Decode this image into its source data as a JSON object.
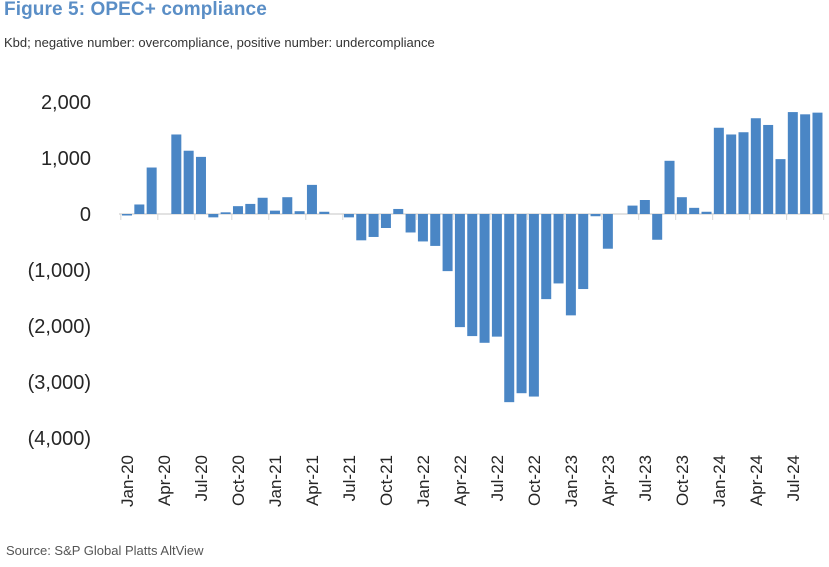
{
  "chart_data": {
    "type": "bar",
    "title": "Figure 5: OPEC+ compliance",
    "subtitle": "Kbd; negative number: overcompliance, positive number: undercompliance",
    "source": "Source: S&P Global Platts AltView",
    "xlabel": "",
    "ylabel": "",
    "ylim": [
      -4000,
      2000
    ],
    "yticks": [
      2000,
      1000,
      0,
      -1000,
      -2000,
      -3000,
      -4000
    ],
    "ytick_labels": [
      "2,000",
      "1,000",
      "0",
      "(1,000)",
      "(2,000)",
      "(3,000)",
      "(4,000)"
    ],
    "xtick_labels": [
      "Jan-20",
      "Apr-20",
      "Jul-20",
      "Oct-20",
      "Jan-21",
      "Apr-21",
      "Jul-21",
      "Oct-21",
      "Jan-22",
      "Apr-22",
      "Jul-22",
      "Oct-22",
      "Jan-23",
      "Apr-23",
      "Jul-23",
      "Oct-23",
      "Jan-24",
      "Apr-24",
      "Jul-24"
    ],
    "grid": false,
    "legend": "none",
    "bar_color": "#4a86c5",
    "categories": [
      "Jan-20",
      "Feb-20",
      "Mar-20",
      "Apr-20",
      "May-20",
      "Jun-20",
      "Jul-20",
      "Aug-20",
      "Sep-20",
      "Oct-20",
      "Nov-20",
      "Dec-20",
      "Jan-21",
      "Feb-21",
      "Mar-21",
      "Apr-21",
      "May-21",
      "Jun-21",
      "Jul-21",
      "Aug-21",
      "Sep-21",
      "Oct-21",
      "Nov-21",
      "Dec-21",
      "Jan-22",
      "Feb-22",
      "Mar-22",
      "Apr-22",
      "May-22",
      "Jun-22",
      "Jul-22",
      "Aug-22",
      "Sep-22",
      "Oct-22",
      "Nov-22",
      "Dec-22",
      "Jan-23",
      "Feb-23",
      "Mar-23",
      "Apr-23",
      "May-23",
      "Jun-23",
      "Jul-23",
      "Aug-23",
      "Sep-23",
      "Oct-23",
      "Nov-23",
      "Dec-23",
      "Jan-24",
      "Feb-24",
      "Mar-24",
      "Apr-24",
      "May-24",
      "Jun-24",
      "Jul-24",
      "Aug-24",
      "Sep-24"
    ],
    "values": [
      -20,
      170,
      830,
      0,
      1420,
      1130,
      1020,
      -60,
      30,
      140,
      180,
      290,
      60,
      300,
      50,
      520,
      40,
      0,
      -60,
      -470,
      -410,
      -250,
      90,
      -330,
      -490,
      -570,
      -1020,
      -2020,
      -2180,
      -2300,
      -2190,
      -3360,
      -3200,
      -3260,
      -1520,
      -1240,
      -1810,
      -1340,
      -40,
      -620,
      0,
      150,
      250,
      -460,
      950,
      300,
      110,
      40,
      1540,
      1420,
      1460,
      1710,
      1590,
      980,
      1820,
      1780,
      1810
    ]
  }
}
